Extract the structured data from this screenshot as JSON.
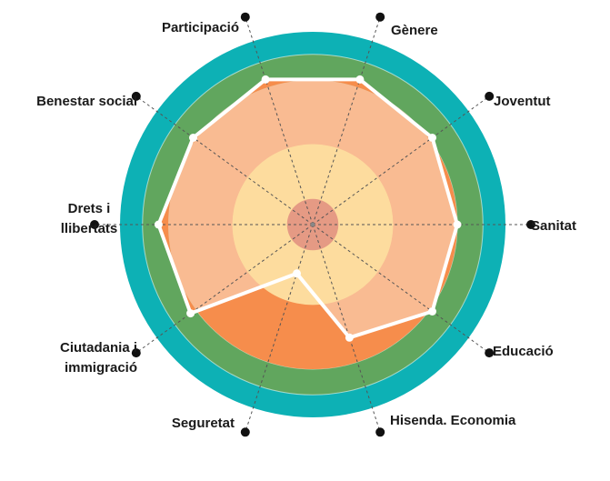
{
  "chart_data": {
    "type": "radar",
    "title": "",
    "axes": [
      {
        "label_lines": [
          "Gènere"
        ],
        "value": 4.75
      },
      {
        "label_lines": [
          "Joventut"
        ],
        "value": 4.6
      },
      {
        "label_lines": [
          "Sanitat"
        ],
        "value": 4.5
      },
      {
        "label_lines": [
          "Educació"
        ],
        "value": 4.6
      },
      {
        "label_lines": [
          "Hisenda. Economia"
        ],
        "value": 3.7
      },
      {
        "label_lines": [
          "Seguretat"
        ],
        "value": 1.6
      },
      {
        "label_lines": [
          "Ciutadania i",
          "immigració"
        ],
        "value": 4.7
      },
      {
        "label_lines": [
          "Drets i",
          "llibertats"
        ],
        "value": 4.8
      },
      {
        "label_lines": [
          "Benestar social"
        ],
        "value": 4.6
      },
      {
        "label_lines": [
          "Participació"
        ],
        "value": 4.75
      }
    ],
    "scale_max": 6,
    "rings": [
      {
        "from": 0,
        "to": 0.8,
        "color": "#e59a84"
      },
      {
        "from": 0.8,
        "to": 2.5,
        "color": "#fddc9e"
      },
      {
        "from": 2.5,
        "to": 4.5,
        "color": "#f9bb92"
      },
      {
        "from": 4.5,
        "to": 5.3,
        "color": "#61a65e"
      },
      {
        "from": 5.3,
        "to": 6.0,
        "color": "#0db1b5"
      }
    ],
    "colors": {
      "series_line": "#ffffff",
      "fill_over_green": "#a8cda1",
      "fill_over_orange": "#f68d4c",
      "axis_line": "#555555",
      "marker": "#111111"
    }
  }
}
